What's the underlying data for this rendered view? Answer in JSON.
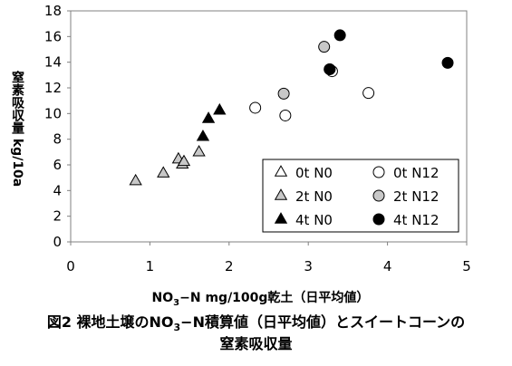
{
  "chart_data": {
    "type": "scatter",
    "title": "",
    "xlabel": {
      "pre": "NO",
      "sub": "3",
      "post": "−N mg/100g乾土（日平均値）"
    },
    "ylabel": "窒素吸収量 kg/10a",
    "xlim": [
      0,
      5
    ],
    "ylim": [
      0,
      18
    ],
    "x_ticks": [
      "0",
      "1",
      "2",
      "3",
      "4",
      "5"
    ],
    "y_ticks": [
      "0",
      "2",
      "4",
      "6",
      "8",
      "10",
      "12",
      "14",
      "16",
      "18"
    ],
    "grid": false,
    "legend_position": "bottom-right",
    "series": [
      {
        "name": "0t N0",
        "marker": "triangle-open",
        "color": "#000000",
        "points": []
      },
      {
        "name": "2t N0",
        "marker": "triangle-gray",
        "color": "#c8c8c8",
        "points": [
          [
            0.82,
            4.75
          ],
          [
            1.17,
            5.35
          ],
          [
            1.36,
            6.45
          ],
          [
            1.41,
            6.05
          ],
          [
            1.43,
            6.25
          ],
          [
            1.62,
            7.0
          ]
        ]
      },
      {
        "name": "4t N0",
        "marker": "triangle-filled",
        "color": "#000000",
        "points": [
          [
            1.67,
            8.2
          ],
          [
            1.74,
            9.6
          ],
          [
            1.88,
            10.25
          ]
        ]
      },
      {
        "name": "0t N12",
        "marker": "circle-open",
        "color": "#000000",
        "points": [
          [
            2.33,
            10.45
          ],
          [
            2.71,
            9.85
          ],
          [
            3.3,
            13.3
          ],
          [
            3.76,
            11.6
          ]
        ]
      },
      {
        "name": "2t N12",
        "marker": "circle-gray",
        "color": "#c8c8c8",
        "points": [
          [
            2.69,
            11.55
          ],
          [
            3.2,
            15.2
          ],
          [
            3.27,
            13.45
          ]
        ]
      },
      {
        "name": "4t N12",
        "marker": "circle-filled",
        "color": "#000000",
        "points": [
          [
            3.27,
            13.45
          ],
          [
            3.4,
            16.1
          ],
          [
            4.76,
            13.95
          ]
        ]
      }
    ]
  },
  "caption": {
    "line1": {
      "pre": "図2 裸地土壌のNO",
      "sub": "3",
      "post": "−N積算値（日平均値）とスイートコーンの"
    },
    "line2": "窒素吸収量"
  }
}
